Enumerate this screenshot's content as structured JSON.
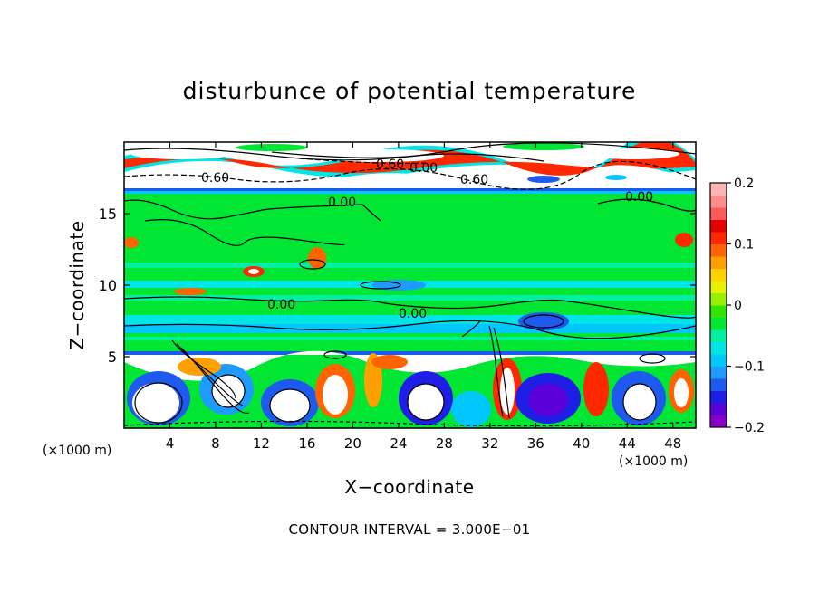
{
  "chart_data": {
    "type": "heatmap",
    "title": "disturbunce of potential temperature",
    "xlabel": "X−coordinate",
    "ylabel": "Z−coordinate",
    "x_unit_label": "(×1000 m)",
    "x_ticks": [
      4,
      8,
      12,
      16,
      20,
      24,
      28,
      32,
      36,
      40,
      44,
      48
    ],
    "y_ticks": [
      5,
      10,
      15
    ],
    "xlim": [
      0,
      50
    ],
    "ylim": [
      0,
      20
    ],
    "colorbar": {
      "ticks": [
        0.2,
        0.1,
        0,
        -0.1,
        -0.2
      ],
      "tick_labels": [
        "0.2",
        "0.1",
        "0",
        "−0.1",
        "−0.2"
      ],
      "range": [
        -0.2,
        0.2
      ],
      "colors": [
        "#8a00c8",
        "#5a00d8",
        "#1e1ee6",
        "#1e5af0",
        "#1e9bff",
        "#00c8ff",
        "#00e6e6",
        "#00f0a0",
        "#00e632",
        "#32e600",
        "#96f000",
        "#e6f000",
        "#ffd200",
        "#ffa000",
        "#ff6400",
        "#ff2800",
        "#e60000",
        "#ff5a5a",
        "#ff8c8c",
        "#ffb4b4"
      ]
    },
    "contour_labels": [
      "0.60",
      "0.60",
      "0.00",
      "0.60",
      "0.00",
      "0.00",
      "0.00",
      "0.00"
    ],
    "contour_interval_text": "CONTOUR INTERVAL = 3.000E−01"
  },
  "colors": {
    "background_green": "#00e632",
    "cyan_band": "#00c8ff",
    "outline": "#000000"
  }
}
